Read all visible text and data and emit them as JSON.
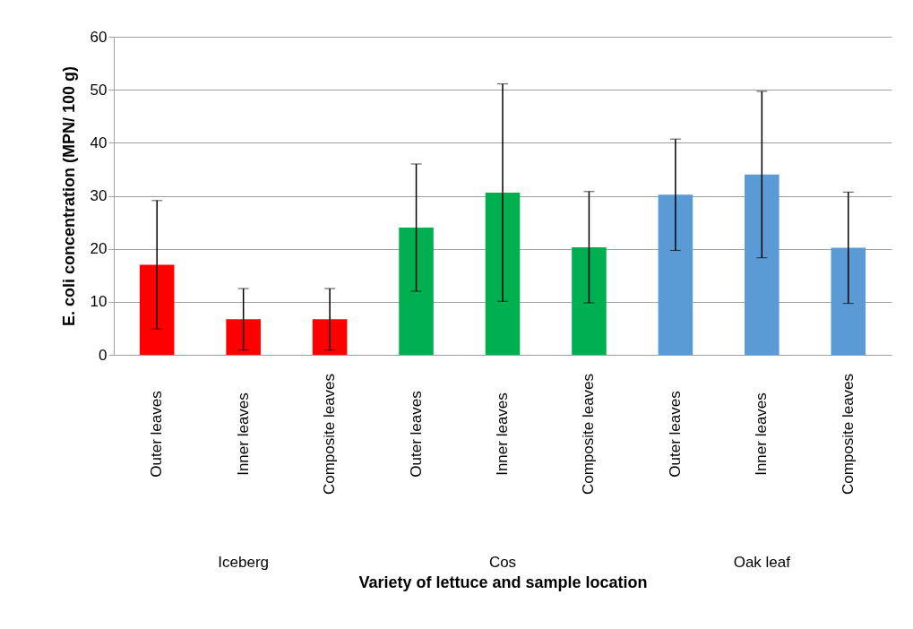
{
  "chart_data": {
    "type": "bar",
    "categories": [
      "Outer leaves",
      "Inner leaves",
      "Composite leaves",
      "Outer leaves",
      "Inner leaves",
      "Composite leaves",
      "Outer leaves",
      "Inner leaves",
      "Composite leaves"
    ],
    "values": [
      17.0,
      6.7,
      6.7,
      24.0,
      30.6,
      20.3,
      30.2,
      34.0,
      20.2
    ],
    "errors": [
      12.1,
      5.8,
      5.8,
      12.0,
      20.5,
      10.5,
      10.5,
      15.7,
      10.5
    ],
    "colors": [
      "#ff0000",
      "#ff0000",
      "#ff0000",
      "#00b050",
      "#00b050",
      "#00b050",
      "#5b9bd5",
      "#5b9bd5",
      "#5b9bd5"
    ],
    "xlabel": "Variety of lettuce and sample location",
    "ylabel": "E. coli concentration (MPN/ 100 g)",
    "ylim": [
      0,
      60
    ],
    "yticks": [
      0,
      10,
      20,
      30,
      40,
      50,
      60
    ],
    "grid": "y",
    "annotations": [
      "Iceberg",
      "Cos",
      "Oak leaf"
    ]
  }
}
